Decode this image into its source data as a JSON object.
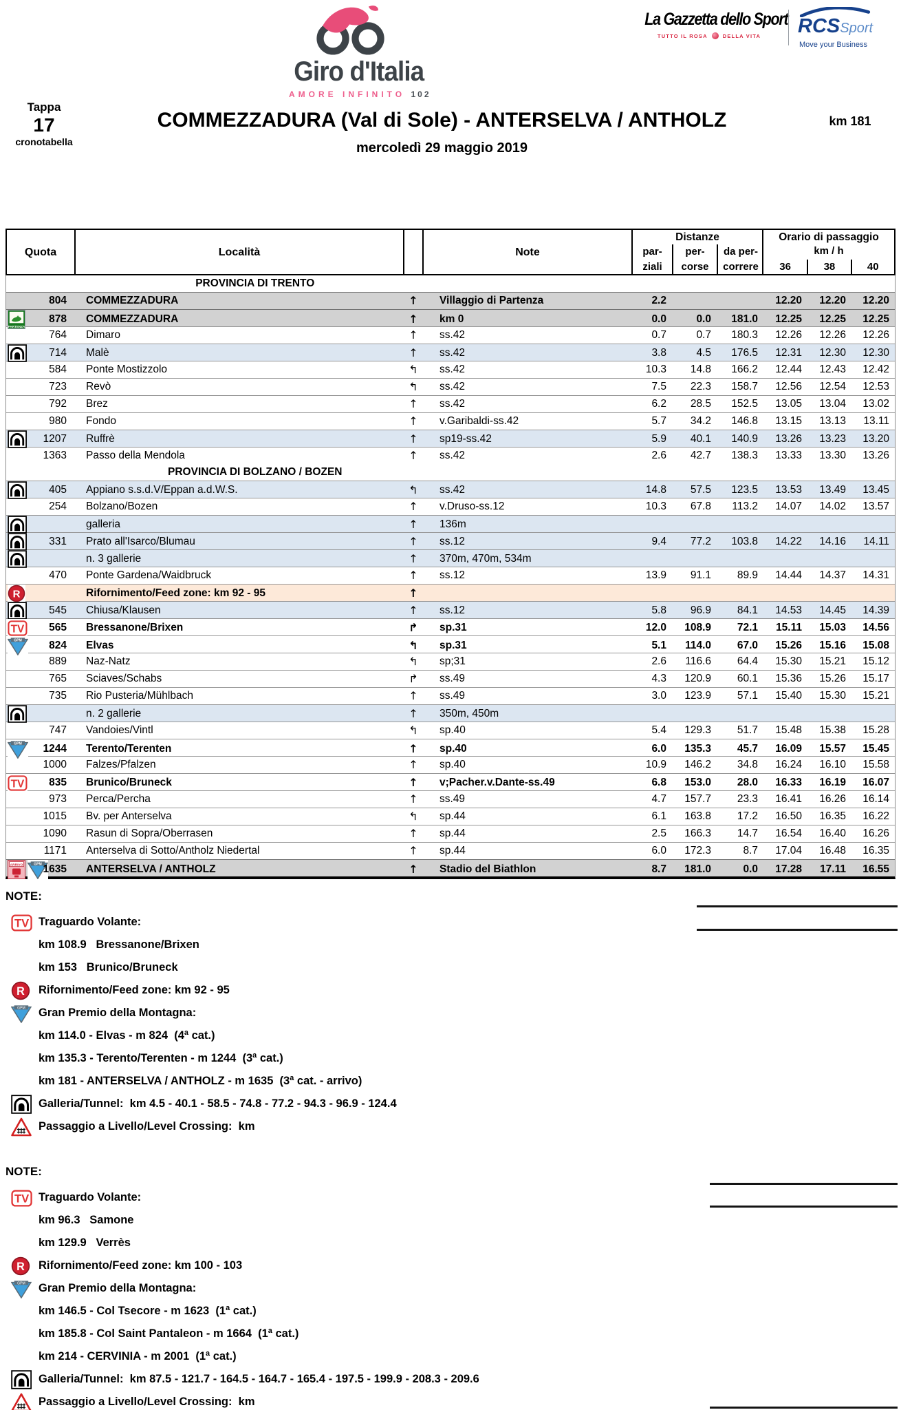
{
  "brand": {
    "giro": {
      "name": "Giro d'Italia",
      "tagline": "AMORE INFINITO",
      "edition": "102"
    },
    "gazzetta": {
      "name": "La Gazzetta dello Sport",
      "tag_left": "TUTTO IL ROSA",
      "tag_right": "DELLA VITA"
    },
    "rcs": {
      "name": "RCS",
      "name2": "Sport",
      "tagline": "Move your Business"
    }
  },
  "title_block": {
    "tappa_label": "Tappa",
    "tappa_number": "17",
    "tappa_sub": "cronotabella",
    "stage_title": "COMMEZZADURA (Val di Sole) - ANTERSELVA / ANTHOLZ",
    "distance": "km 181",
    "date": "mercoledì 29 maggio 2019"
  },
  "table": {
    "headers": {
      "quota": "Quota",
      "localita": "Località",
      "note": "Note",
      "distanze": "Distanze",
      "dist_cols": [
        [
          "par-",
          "ziali"
        ],
        [
          "per-",
          "corse"
        ],
        [
          "da per-",
          "correre"
        ]
      ],
      "orario": "Orario di passaggio",
      "kmh": "km / h",
      "speeds": [
        "36",
        "38",
        "40"
      ]
    },
    "rows": [
      {
        "section": "PROVINCIA DI TRENTO"
      },
      {
        "icons": [],
        "quota": "804",
        "localita": "COMMEZZADURA",
        "arrow": "up",
        "note": "Villaggio di Partenza",
        "parziali": "2.2",
        "percorse": "",
        "dapercorrere": "",
        "t36": "12.20",
        "t38": "12.20",
        "t40": "12.20",
        "bg": "gray",
        "bold": true
      },
      {
        "icons": [
          "partenza"
        ],
        "quota": "878",
        "localita": "COMMEZZADURA",
        "arrow": "up",
        "note": "km 0",
        "parziali": "0.0",
        "percorse": "0.0",
        "dapercorrere": "181.0",
        "t36": "12.25",
        "t38": "12.25",
        "t40": "12.25",
        "bg": "gray",
        "bold": true
      },
      {
        "icons": [],
        "quota": "764",
        "localita": "Dimaro",
        "arrow": "up",
        "note": "ss.42",
        "parziali": "0.7",
        "percorse": "0.7",
        "dapercorrere": "180.3",
        "t36": "12.26",
        "t38": "12.26",
        "t40": "12.26"
      },
      {
        "icons": [
          "tunnel"
        ],
        "quota": "714",
        "localita": "Malè",
        "arrow": "up",
        "note": "ss.42",
        "parziali": "3.8",
        "percorse": "4.5",
        "dapercorrere": "176.5",
        "t36": "12.31",
        "t38": "12.30",
        "t40": "12.30",
        "bg": "blue"
      },
      {
        "icons": [],
        "quota": "584",
        "localita": "Ponte Mostizzolo",
        "arrow": "left",
        "note": "ss.42",
        "parziali": "10.3",
        "percorse": "14.8",
        "dapercorrere": "166.2",
        "t36": "12.44",
        "t38": "12.43",
        "t40": "12.42"
      },
      {
        "icons": [],
        "quota": "723",
        "localita": "Revò",
        "arrow": "left",
        "note": "ss.42",
        "parziali": "7.5",
        "percorse": "22.3",
        "dapercorrere": "158.7",
        "t36": "12.56",
        "t38": "12.54",
        "t40": "12.53"
      },
      {
        "icons": [],
        "quota": "792",
        "localita": "Brez",
        "arrow": "up",
        "note": "ss.42",
        "parziali": "6.2",
        "percorse": "28.5",
        "dapercorrere": "152.5",
        "t36": "13.05",
        "t38": "13.04",
        "t40": "13.02"
      },
      {
        "icons": [],
        "quota": "980",
        "localita": "Fondo",
        "arrow": "up",
        "note": "v.Garibaldi-ss.42",
        "parziali": "5.7",
        "percorse": "34.2",
        "dapercorrere": "146.8",
        "t36": "13.15",
        "t38": "13.13",
        "t40": "13.11"
      },
      {
        "icons": [
          "tunnel"
        ],
        "quota": "1207",
        "localita": "Ruffrè",
        "arrow": "up",
        "note": "sp19-ss.42",
        "parziali": "5.9",
        "percorse": "40.1",
        "dapercorrere": "140.9",
        "t36": "13.26",
        "t38": "13.23",
        "t40": "13.20",
        "bg": "blue"
      },
      {
        "icons": [],
        "quota": "1363",
        "localita": "Passo della Mendola",
        "arrow": "up",
        "note": "ss.42",
        "parziali": "2.6",
        "percorse": "42.7",
        "dapercorrere": "138.3",
        "t36": "13.33",
        "t38": "13.30",
        "t40": "13.26"
      },
      {
        "section": "PROVINCIA DI BOLZANO / BOZEN"
      },
      {
        "icons": [
          "tunnel"
        ],
        "quota": "405",
        "localita": "Appiano s.s.d.V/Eppan a.d.W.S.",
        "arrow": "left",
        "note": "ss.42",
        "parziali": "14.8",
        "percorse": "57.5",
        "dapercorrere": "123.5",
        "t36": "13.53",
        "t38": "13.49",
        "t40": "13.45",
        "bg": "blue"
      },
      {
        "icons": [],
        "quota": "254",
        "localita": "Bolzano/Bozen",
        "arrow": "up",
        "note": "v.Druso-ss.12",
        "parziali": "10.3",
        "percorse": "67.8",
        "dapercorrere": "113.2",
        "t36": "14.07",
        "t38": "14.02",
        "t40": "13.57"
      },
      {
        "icons": [
          "tunnel"
        ],
        "quota": "",
        "localita": "galleria",
        "arrow": "up",
        "note": "136m",
        "parziali": "",
        "percorse": "",
        "dapercorrere": "",
        "t36": "",
        "t38": "",
        "t40": "",
        "bg": "blue"
      },
      {
        "icons": [
          "tunnel"
        ],
        "quota": "331",
        "localita": "Prato all'Isarco/Blumau",
        "arrow": "up",
        "note": "ss.12",
        "parziali": "9.4",
        "percorse": "77.2",
        "dapercorrere": "103.8",
        "t36": "14.22",
        "t38": "14.16",
        "t40": "14.11",
        "bg": "blue"
      },
      {
        "icons": [
          "tunnel"
        ],
        "quota": "",
        "localita": "n. 3 gallerie",
        "arrow": "up",
        "note": "370m, 470m, 534m",
        "parziali": "",
        "percorse": "",
        "dapercorrere": "",
        "t36": "",
        "t38": "",
        "t40": "",
        "bg": "blue"
      },
      {
        "icons": [],
        "quota": "470",
        "localita": "Ponte Gardena/Waidbruck",
        "arrow": "up",
        "note": "ss.12",
        "parziali": "13.9",
        "percorse": "91.1",
        "dapercorrere": "89.9",
        "t36": "14.44",
        "t38": "14.37",
        "t40": "14.31"
      },
      {
        "icons": [
          "feed"
        ],
        "quota": "",
        "localita": "Rifornimento/Feed zone: km 92 - 95",
        "arrow": "up",
        "note": "",
        "parziali": "",
        "percorse": "",
        "dapercorrere": "",
        "t36": "",
        "t38": "",
        "t40": "",
        "bg": "peach",
        "bold": true
      },
      {
        "icons": [
          "tunnel"
        ],
        "quota": "545",
        "localita": "Chiusa/Klausen",
        "arrow": "up",
        "note": "ss.12",
        "parziali": "5.8",
        "percorse": "96.9",
        "dapercorrere": "84.1",
        "t36": "14.53",
        "t38": "14.45",
        "t40": "14.39",
        "bg": "blue"
      },
      {
        "icons": [
          "tv"
        ],
        "quota": "565",
        "localita": "Bressanone/Brixen",
        "arrow": "right",
        "note": "sp.31",
        "parziali": "12.0",
        "percorse": "108.9",
        "dapercorrere": "72.1",
        "t36": "15.11",
        "t38": "15.03",
        "t40": "14.56",
        "bold": true
      },
      {
        "icons": [
          "gpm"
        ],
        "quota": "824",
        "localita": "Elvas",
        "arrow": "left",
        "note": "sp.31",
        "parziali": "5.1",
        "percorse": "114.0",
        "dapercorrere": "67.0",
        "t36": "15.26",
        "t38": "15.16",
        "t40": "15.08",
        "bold": true
      },
      {
        "icons": [],
        "quota": "889",
        "localita": "Naz-Natz",
        "arrow": "left",
        "note": "sp;31",
        "parziali": "2.6",
        "percorse": "116.6",
        "dapercorrere": "64.4",
        "t36": "15.30",
        "t38": "15.21",
        "t40": "15.12"
      },
      {
        "icons": [],
        "quota": "765",
        "localita": "Sciaves/Schabs",
        "arrow": "right",
        "note": "ss.49",
        "parziali": "4.3",
        "percorse": "120.9",
        "dapercorrere": "60.1",
        "t36": "15.36",
        "t38": "15.26",
        "t40": "15.17"
      },
      {
        "icons": [],
        "quota": "735",
        "localita": "Rio Pusteria/Mühlbach",
        "arrow": "up",
        "note": "ss.49",
        "parziali": "3.0",
        "percorse": "123.9",
        "dapercorrere": "57.1",
        "t36": "15.40",
        "t38": "15.30",
        "t40": "15.21"
      },
      {
        "icons": [
          "tunnel"
        ],
        "quota": "",
        "localita": "n. 2 gallerie",
        "arrow": "up",
        "note": "350m, 450m",
        "parziali": "",
        "percorse": "",
        "dapercorrere": "",
        "t36": "",
        "t38": "",
        "t40": "",
        "bg": "blue"
      },
      {
        "icons": [],
        "quota": "747",
        "localita": "Vandoies/Vintl",
        "arrow": "left",
        "note": "sp.40",
        "parziali": "5.4",
        "percorse": "129.3",
        "dapercorrere": "51.7",
        "t36": "15.48",
        "t38": "15.38",
        "t40": "15.28"
      },
      {
        "icons": [
          "gpm"
        ],
        "quota": "1244",
        "localita": "Terento/Terenten",
        "arrow": "up",
        "note": "sp.40",
        "parziali": "6.0",
        "percorse": "135.3",
        "dapercorrere": "45.7",
        "t36": "16.09",
        "t38": "15.57",
        "t40": "15.45",
        "bold": true
      },
      {
        "icons": [],
        "quota": "1000",
        "localita": "Falzes/Pfalzen",
        "arrow": "up",
        "note": "sp.40",
        "parziali": "10.9",
        "percorse": "146.2",
        "dapercorrere": "34.8",
        "t36": "16.24",
        "t38": "16.10",
        "t40": "15.58"
      },
      {
        "icons": [
          "tv"
        ],
        "quota": "835",
        "localita": "Brunico/Bruneck",
        "arrow": "up",
        "note": "v;Pacher.v.Dante-ss.49",
        "parziali": "6.8",
        "percorse": "153.0",
        "dapercorrere": "28.0",
        "t36": "16.33",
        "t38": "16.19",
        "t40": "16.07",
        "bold": true
      },
      {
        "icons": [],
        "quota": "973",
        "localita": "Perca/Percha",
        "arrow": "up",
        "note": "ss.49",
        "parziali": "4.7",
        "percorse": "157.7",
        "dapercorrere": "23.3",
        "t36": "16.41",
        "t38": "16.26",
        "t40": "16.14"
      },
      {
        "icons": [],
        "quota": "1015",
        "localita": "Bv. per Anterselva",
        "arrow": "left",
        "note": "sp.44",
        "parziali": "6.1",
        "percorse": "163.8",
        "dapercorrere": "17.2",
        "t36": "16.50",
        "t38": "16.35",
        "t40": "16.22"
      },
      {
        "icons": [],
        "quota": "1090",
        "localita": "Rasun di Sopra/Oberrasen",
        "arrow": "up",
        "note": "sp.44",
        "parziali": "2.5",
        "percorse": "166.3",
        "dapercorrere": "14.7",
        "t36": "16.54",
        "t38": "16.40",
        "t40": "16.26"
      },
      {
        "icons": [],
        "quota": "1171",
        "localita": "Anterselva di Sotto/Antholz Niedertal",
        "arrow": "up",
        "note": "sp.44",
        "parziali": "6.0",
        "percorse": "172.3",
        "dapercorrere": "8.7",
        "t36": "17.04",
        "t38": "16.48",
        "t40": "16.35"
      },
      {
        "icons": [
          "arrivo",
          "gpm"
        ],
        "quota": "1635",
        "localita": "ANTERSELVA / ANTHOLZ",
        "arrow": "up",
        "note": "Stadio del Biathlon",
        "parziali": "8.7",
        "percorse": "181.0",
        "dapercorrere": "0.0",
        "t36": "17.28",
        "t38": "17.11",
        "t40": "16.55",
        "bg": "gray",
        "bold": true
      }
    ]
  },
  "notes": [
    {
      "label": "NOTE:",
      "items": [
        {
          "icon": "tv",
          "text": "Traguardo Volante:"
        },
        {
          "icon": "",
          "text": "km 108.9   Bressanone/Brixen"
        },
        {
          "icon": "",
          "text": "km 153   Brunico/Bruneck"
        },
        {
          "icon": "feed",
          "text": "Rifornimento/Feed zone: km 92 - 95"
        },
        {
          "icon": "gpm",
          "text": "Gran Premio della Montagna:"
        },
        {
          "icon": "",
          "text": "km 114.0 - Elvas - m 824  (4ª cat.)"
        },
        {
          "icon": "",
          "text": "km 135.3 - Terento/Terenten - m 1244  (3ª cat.)"
        },
        {
          "icon": "",
          "text": "km 181 - ANTERSELVA / ANTHOLZ - m 1635  (3ª cat. - arrivo)"
        },
        {
          "icon": "tunnel",
          "text": "Galleria/Tunnel:  km 4.5 - 40.1 - 58.5 - 74.8 - 77.2 - 94.3 - 96.9 - 124.4"
        },
        {
          "icon": "crossing",
          "text": "Passaggio a Livello/Level Crossing:  km"
        }
      ]
    },
    {
      "label": "NOTE:",
      "items": [
        {
          "icon": "tv",
          "text": "Traguardo Volante:"
        },
        {
          "icon": "",
          "text": "km 96.3   Samone"
        },
        {
          "icon": "",
          "text": "km 129.9   Verrès"
        },
        {
          "icon": "feed",
          "text": "Rifornimento/Feed zone: km 100 - 103"
        },
        {
          "icon": "gpm",
          "text": "Gran Premio della Montagna:"
        },
        {
          "icon": "",
          "text": "km 146.5 - Col Tsecore - m 1623  (1ª cat.)"
        },
        {
          "icon": "",
          "text": "km 185.8 - Col Saint Pantaleon - m 1664  (1ª cat.)"
        },
        {
          "icon": "",
          "text": "km 214 - CERVINIA - m 2001  (1ª cat.)"
        },
        {
          "icon": "tunnel",
          "text": "Galleria/Tunnel:  km 87.5 - 121.7 - 164.5 - 164.7 - 165.4 - 197.5 - 199.9 - 208.3 - 209.6"
        },
        {
          "icon": "crossing",
          "text": "Passaggio a Livello/Level Crossing:  km"
        }
      ]
    }
  ]
}
